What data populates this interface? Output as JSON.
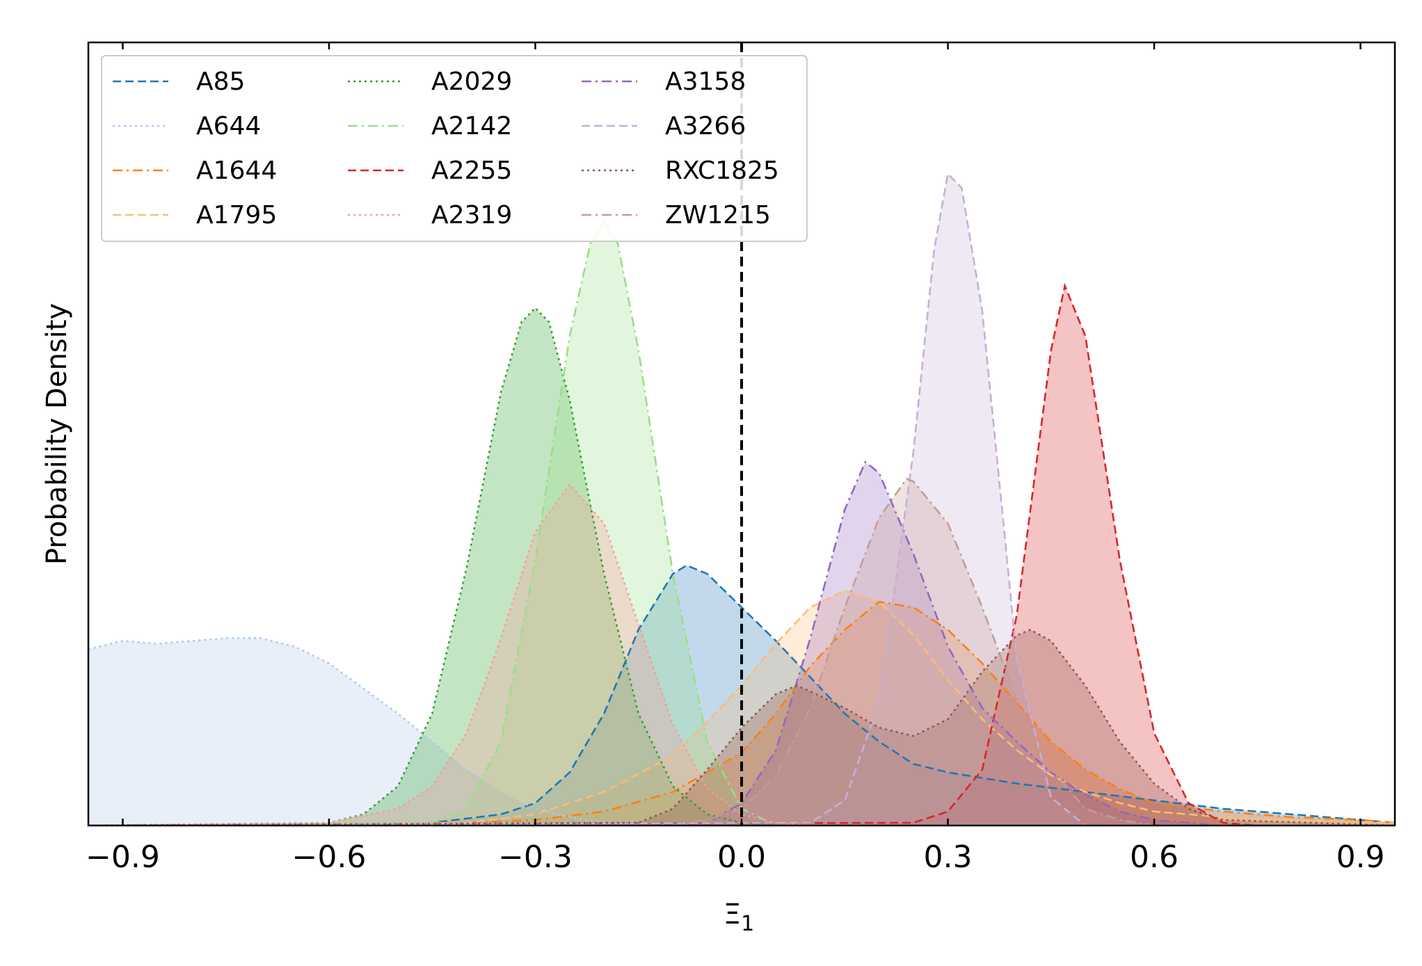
{
  "chart_data": {
    "type": "area",
    "title": "",
    "xlabel": "Ξ",
    "xlabel_subscript": "1",
    "ylabel": "Probability Density",
    "xlim": [
      -0.95,
      0.95
    ],
    "ylim": [
      0,
      2.8
    ],
    "xticks": [
      -0.9,
      -0.6,
      -0.3,
      0.0,
      0.3,
      0.6,
      0.9
    ],
    "xtick_labels": [
      "−0.9",
      "−0.6",
      "−0.3",
      "0.0",
      "0.3",
      "0.6",
      "0.9"
    ],
    "grid": false,
    "legend_position": "upper-left",
    "reference_line": {
      "x": 0.0,
      "style": "dashed",
      "color": "#000000"
    },
    "series": [
      {
        "name": "A85",
        "color": "#1f77b4",
        "dash": "dashed",
        "x": [
          -0.95,
          -0.6,
          -0.45,
          -0.35,
          -0.3,
          -0.25,
          -0.2,
          -0.15,
          -0.1,
          -0.08,
          -0.05,
          0.0,
          0.05,
          0.1,
          0.15,
          0.2,
          0.25,
          0.3,
          0.35,
          0.4,
          0.5,
          0.6,
          0.7,
          0.8,
          0.9,
          0.95
        ],
        "y": [
          0,
          0,
          0.01,
          0.04,
          0.08,
          0.19,
          0.4,
          0.7,
          0.9,
          0.93,
          0.9,
          0.78,
          0.66,
          0.53,
          0.4,
          0.3,
          0.22,
          0.19,
          0.17,
          0.15,
          0.12,
          0.09,
          0.06,
          0.04,
          0.02,
          0.01
        ]
      },
      {
        "name": "A644",
        "color": "#aec7e8",
        "dash": "dotted",
        "x": [
          -0.95,
          -0.9,
          -0.85,
          -0.8,
          -0.75,
          -0.7,
          -0.65,
          -0.6,
          -0.55,
          -0.5,
          -0.45,
          -0.4,
          -0.35,
          -0.3,
          -0.25,
          -0.2,
          -0.15,
          -0.1,
          -0.05,
          0.0
        ],
        "y": [
          0.63,
          0.66,
          0.65,
          0.66,
          0.67,
          0.67,
          0.64,
          0.58,
          0.49,
          0.4,
          0.3,
          0.2,
          0.12,
          0.06,
          0.03,
          0.01,
          0.005,
          0.002,
          0,
          0
        ]
      },
      {
        "name": "A1644",
        "color": "#ff7f0e",
        "dash": "dashdot",
        "x": [
          -0.95,
          -0.4,
          -0.3,
          -0.2,
          -0.1,
          0.0,
          0.05,
          0.1,
          0.15,
          0.2,
          0.25,
          0.3,
          0.35,
          0.4,
          0.45,
          0.5,
          0.55,
          0.6,
          0.7,
          0.8,
          0.9,
          0.95
        ],
        "y": [
          0,
          0.01,
          0.02,
          0.05,
          0.12,
          0.26,
          0.4,
          0.57,
          0.7,
          0.8,
          0.78,
          0.7,
          0.58,
          0.44,
          0.3,
          0.2,
          0.13,
          0.08,
          0.05,
          0.03,
          0.02,
          0.01
        ]
      },
      {
        "name": "A1795",
        "color": "#ffbb78",
        "dash": "dashed",
        "x": [
          -0.95,
          -0.4,
          -0.3,
          -0.2,
          -0.1,
          -0.05,
          0.0,
          0.05,
          0.1,
          0.15,
          0.2,
          0.25,
          0.3,
          0.35,
          0.4,
          0.45,
          0.5,
          0.55,
          0.6,
          0.7,
          0.8,
          0.95
        ],
        "y": [
          0,
          0.01,
          0.04,
          0.12,
          0.25,
          0.37,
          0.5,
          0.65,
          0.78,
          0.84,
          0.8,
          0.68,
          0.52,
          0.38,
          0.27,
          0.18,
          0.12,
          0.08,
          0.05,
          0.03,
          0.02,
          0.01
        ]
      },
      {
        "name": "A2029",
        "color": "#2ca02c",
        "dash": "dotted",
        "x": [
          -0.95,
          -0.6,
          -0.55,
          -0.5,
          -0.45,
          -0.4,
          -0.35,
          -0.32,
          -0.3,
          -0.28,
          -0.25,
          -0.2,
          -0.15,
          -0.1,
          -0.05,
          0.0,
          0.05
        ],
        "y": [
          0,
          0.01,
          0.04,
          0.14,
          0.4,
          0.92,
          1.55,
          1.8,
          1.85,
          1.8,
          1.52,
          0.9,
          0.4,
          0.14,
          0.04,
          0.01,
          0
        ]
      },
      {
        "name": "A2142",
        "color": "#98df8a",
        "dash": "dashdot",
        "x": [
          -0.95,
          -0.45,
          -0.4,
          -0.35,
          -0.3,
          -0.25,
          -0.22,
          -0.2,
          -0.18,
          -0.15,
          -0.1,
          -0.05,
          0.0,
          0.05
        ],
        "y": [
          0,
          0.01,
          0.06,
          0.3,
          0.95,
          1.75,
          2.08,
          2.16,
          2.08,
          1.7,
          0.9,
          0.3,
          0.06,
          0
        ]
      },
      {
        "name": "A2255",
        "color": "#d62728",
        "dash": "dashed",
        "x": [
          -0.95,
          0.25,
          0.3,
          0.35,
          0.4,
          0.45,
          0.47,
          0.5,
          0.55,
          0.6,
          0.65,
          0.7,
          0.75,
          0.95
        ],
        "y": [
          0,
          0.01,
          0.05,
          0.2,
          0.75,
          1.7,
          1.93,
          1.75,
          0.95,
          0.33,
          0.08,
          0.01,
          0,
          0
        ]
      },
      {
        "name": "A2319",
        "color": "#ff9896",
        "dash": "dotted",
        "x": [
          -0.95,
          -0.6,
          -0.5,
          -0.45,
          -0.4,
          -0.35,
          -0.3,
          -0.25,
          -0.2,
          -0.15,
          -0.1,
          -0.05,
          0.0,
          0.05,
          0.1
        ],
        "y": [
          0,
          0.01,
          0.06,
          0.14,
          0.33,
          0.67,
          1.05,
          1.22,
          1.08,
          0.72,
          0.36,
          0.13,
          0.04,
          0.01,
          0
        ]
      },
      {
        "name": "A3158",
        "color": "#9467bd",
        "dash": "dashdot",
        "x": [
          -0.95,
          -0.05,
          0.0,
          0.05,
          0.1,
          0.15,
          0.18,
          0.2,
          0.25,
          0.3,
          0.35,
          0.4,
          0.45,
          0.5,
          0.55,
          0.6,
          0.7,
          0.95
        ],
        "y": [
          0,
          0.01,
          0.08,
          0.27,
          0.67,
          1.13,
          1.3,
          1.26,
          0.97,
          0.64,
          0.42,
          0.3,
          0.19,
          0.11,
          0.05,
          0.02,
          0,
          0
        ]
      },
      {
        "name": "A3266",
        "color": "#c5b0d5",
        "dash": "dashed",
        "x": [
          -0.95,
          0.1,
          0.15,
          0.2,
          0.25,
          0.28,
          0.3,
          0.32,
          0.35,
          0.38,
          0.4,
          0.45,
          0.5,
          0.95
        ],
        "y": [
          0,
          0.01,
          0.09,
          0.44,
          1.34,
          2.06,
          2.33,
          2.28,
          1.84,
          1.1,
          0.6,
          0.1,
          0,
          0
        ]
      },
      {
        "name": "RXC1825",
        "color": "#8c564b",
        "dash": "dotted",
        "x": [
          -0.95,
          -0.15,
          -0.1,
          -0.05,
          0.0,
          0.05,
          0.08,
          0.1,
          0.15,
          0.2,
          0.25,
          0.3,
          0.35,
          0.4,
          0.42,
          0.45,
          0.5,
          0.55,
          0.6,
          0.65,
          0.7,
          0.95
        ],
        "y": [
          0,
          0.01,
          0.06,
          0.2,
          0.35,
          0.47,
          0.5,
          0.48,
          0.42,
          0.35,
          0.32,
          0.38,
          0.55,
          0.68,
          0.7,
          0.66,
          0.5,
          0.3,
          0.15,
          0.06,
          0.02,
          0
        ]
      },
      {
        "name": "ZW1215",
        "color": "#c49c94",
        "dash": "dashdot",
        "x": [
          -0.95,
          -0.1,
          -0.05,
          0.0,
          0.05,
          0.1,
          0.15,
          0.2,
          0.24,
          0.25,
          0.3,
          0.35,
          0.4,
          0.45,
          0.5,
          0.55,
          0.6,
          0.95
        ],
        "y": [
          0,
          0,
          0.02,
          0.06,
          0.18,
          0.42,
          0.78,
          1.1,
          1.24,
          1.23,
          1.08,
          0.78,
          0.45,
          0.2,
          0.06,
          0.02,
          0,
          0
        ]
      }
    ]
  }
}
